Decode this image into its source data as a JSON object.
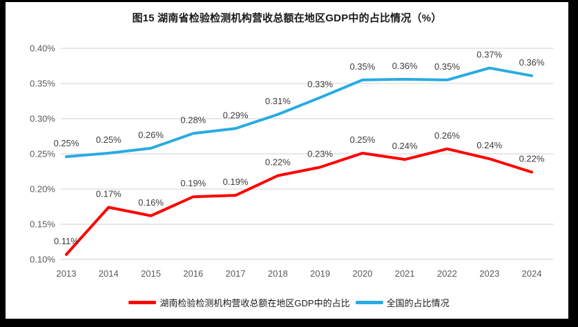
{
  "chart_data": {
    "type": "line",
    "title": "图15 湖南省检验检测机构营收总额在地区GDP中的占比情况（%）",
    "categories": [
      "2013",
      "2014",
      "2015",
      "2016",
      "2017",
      "2018",
      "2019",
      "2020",
      "2021",
      "2022",
      "2023",
      "2024"
    ],
    "y_axis": {
      "min": 0.1,
      "max": 0.4,
      "step": 0.05,
      "unit": "%",
      "tick_labels": [
        "0.10%",
        "0.15%",
        "0.20%",
        "0.25%",
        "0.30%",
        "0.35%",
        "0.40%"
      ],
      "grid": true
    },
    "series": [
      {
        "id": "hunan",
        "name": "湖南检验检测机构营收总额在地区GDP中的占比",
        "color": "#FF0000",
        "data_labels": [
          "0.11%",
          "0.17%",
          "0.16%",
          "0.19%",
          "0.19%",
          "0.22%",
          "0.23%",
          "0.25%",
          "0.24%",
          "0.26%",
          "0.24%",
          "0.22%"
        ],
        "values": [
          0.107,
          0.174,
          0.162,
          0.189,
          0.191,
          0.219,
          0.231,
          0.251,
          0.242,
          0.257,
          0.243,
          0.224
        ]
      },
      {
        "id": "national",
        "name": "全国的占比情况",
        "color": "#29ABE2",
        "data_labels": [
          "0.25%",
          "0.25%",
          "0.26%",
          "0.28%",
          "0.29%",
          "0.31%",
          "0.33%",
          "0.35%",
          "0.36%",
          "0.35%",
          "0.37%",
          "0.36%"
        ],
        "values": [
          0.246,
          0.251,
          0.258,
          0.279,
          0.286,
          0.306,
          0.33,
          0.355,
          0.356,
          0.355,
          0.372,
          0.361
        ]
      }
    ],
    "legend_position": "bottom",
    "xlabel": "",
    "ylabel": ""
  },
  "colors": {
    "gridline": "#D9D9D9",
    "axis_text": "#595959",
    "data_label_text": "#3B3B3B",
    "title_text": "#1A1A1A",
    "frame_border": "#000000",
    "background": "#FFFFFF"
  }
}
